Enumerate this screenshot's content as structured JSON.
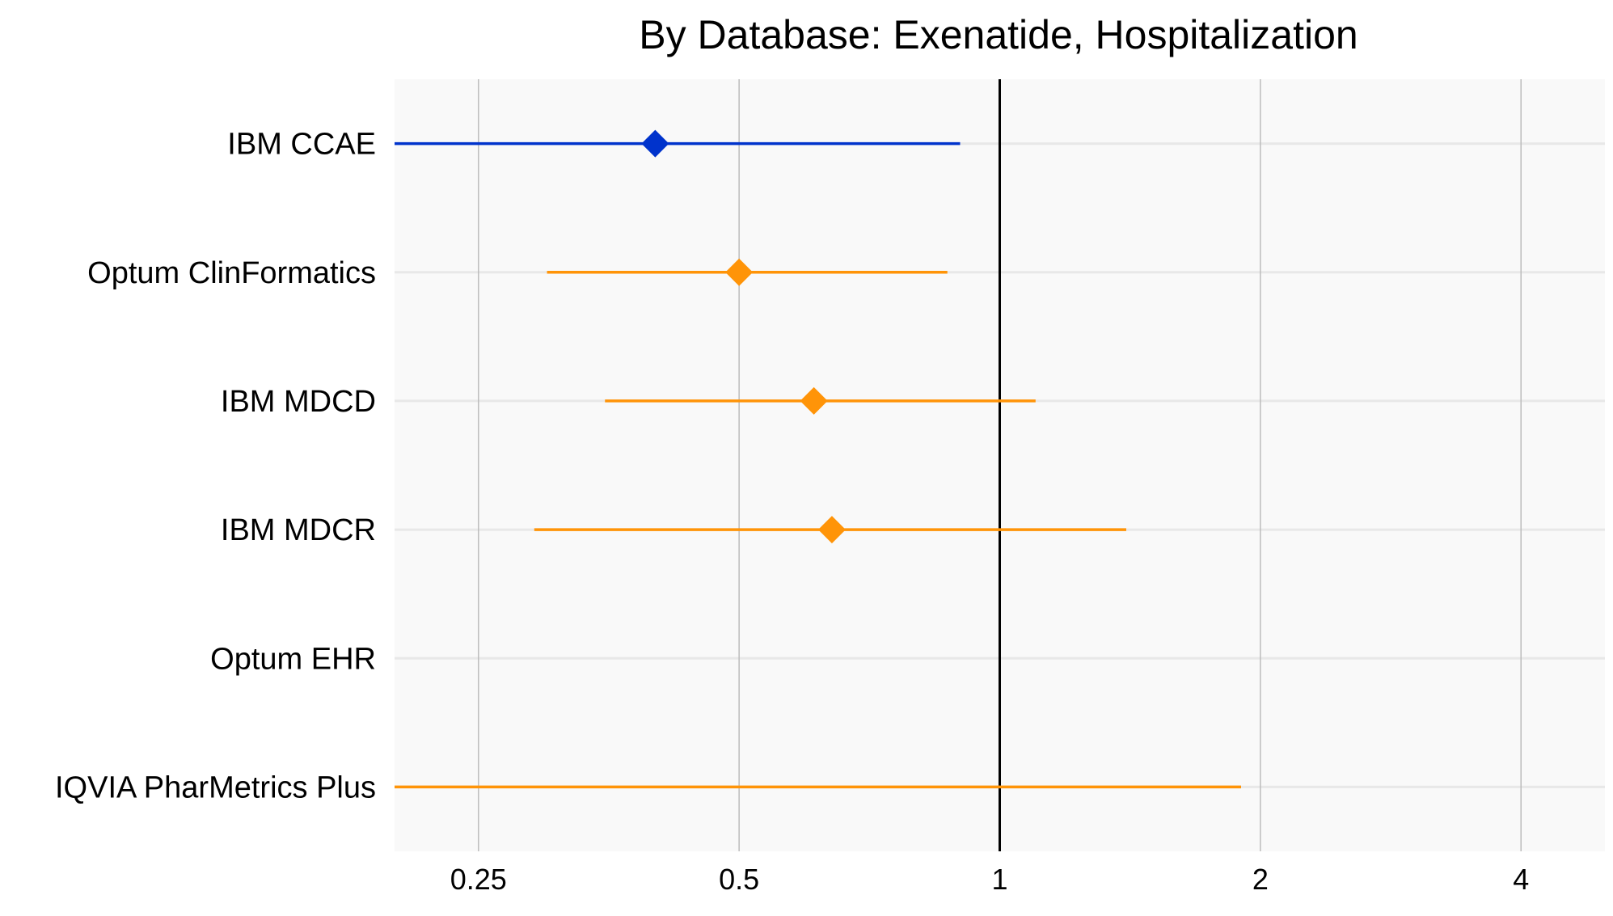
{
  "chart_data": {
    "type": "forest",
    "title": "By Database: Exenatide, Hospitalization",
    "xlabel": "",
    "ylabel": "",
    "x_scale": "log",
    "xlim": [
      0.2,
      5.0
    ],
    "x_ticks": [
      0.25,
      0.5,
      1,
      2,
      4
    ],
    "x_tick_labels": [
      "0.25",
      "0.5",
      "1",
      "2",
      "4"
    ],
    "reference_line": 1,
    "grid": true,
    "categories": [
      "IBM CCAE",
      "Optum ClinFormatics",
      "IBM MDCD",
      "IBM MDCR",
      "Optum EHR",
      "IQVIA PharMetrics Plus"
    ],
    "rows": [
      {
        "label": "IBM CCAE",
        "estimate": 0.4,
        "lower": 0.2,
        "upper": 0.9,
        "color": "#0033cc"
      },
      {
        "label": "Optum ClinFormatics",
        "estimate": 0.5,
        "lower": 0.3,
        "upper": 0.87,
        "color": "#ff9408"
      },
      {
        "label": "IBM MDCD",
        "estimate": 0.61,
        "lower": 0.35,
        "upper": 1.1,
        "color": "#ff9408"
      },
      {
        "label": "IBM MDCR",
        "estimate": 0.64,
        "lower": 0.29,
        "upper": 1.4,
        "color": "#ff9408"
      },
      {
        "label": "Optum EHR",
        "estimate": null,
        "lower": null,
        "upper": null,
        "color": "#ff9408"
      },
      {
        "label": "IQVIA PharMetrics Plus",
        "estimate": null,
        "lower": 0.2,
        "upper": 1.9,
        "color": "#ff9408"
      }
    ],
    "colors": {
      "panel_background": "#f9f9f9",
      "major_grid": "#bcbcbc",
      "row_grid": "#e8e8e8",
      "reference_line": "#000000",
      "text": "#000000"
    }
  }
}
